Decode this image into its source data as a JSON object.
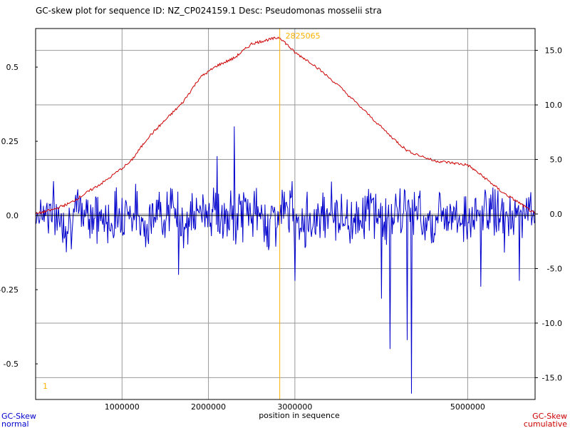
{
  "chart_data": {
    "type": "line",
    "title": "GC-skew plot for sequence ID: NZ_CP024159.1 Desc: Pseudomonas mosselii stra",
    "xlabel": "position in sequence",
    "xlim": [
      0,
      5780000
    ],
    "x_ticks": [
      1000000,
      2000000,
      3000000,
      5000000
    ],
    "x_tick_labels": [
      "1000000",
      "2000000",
      "3000000",
      "5000000"
    ],
    "y_left": {
      "name_line1": "GC-Skew",
      "name_line2": "normal",
      "ylim": [
        -0.62,
        0.63
      ],
      "ticks": [
        0.5,
        0.25,
        0.0,
        -0.25,
        -0.5
      ],
      "tick_labels": [
        "0.5",
        "0.25",
        "0.0",
        "-0.25",
        "-0.5"
      ]
    },
    "y_right": {
      "name_line1": "GC-Skew",
      "name_line2": "cumulative",
      "ylim": [
        -17.0,
        17.0
      ],
      "ticks": [
        15.0,
        10.0,
        5.0,
        0.0,
        -5.0,
        -10.0,
        -15.0
      ],
      "tick_labels": [
        "15.0",
        "10.0",
        "5.0",
        "0.0",
        "-5.0",
        "-10.0",
        "-15.0"
      ]
    },
    "grid": true,
    "markers": {
      "max_position": 2825065,
      "max_label": "2825065",
      "origin_label": "1"
    },
    "series": [
      {
        "axis": "right",
        "color": "#cc0000",
        "x": [
          0,
          200000,
          400000,
          600000,
          800000,
          1100000,
          1300000,
          1500000,
          1700000,
          1900000,
          2100000,
          2300000,
          2500000,
          2650000,
          2825065,
          3000000,
          3200000,
          3500000,
          3800000,
          4100000,
          4300000,
          4600000,
          4800000,
          5000000,
          5200000,
          5400000,
          5600000,
          5780000
        ],
        "values": [
          0.0,
          0.4,
          1.0,
          2.0,
          3.0,
          4.8,
          7.0,
          8.6,
          10.2,
          12.5,
          13.6,
          14.3,
          15.6,
          15.9,
          16.2,
          14.8,
          13.8,
          11.8,
          9.5,
          7.2,
          5.8,
          4.9,
          4.7,
          4.5,
          3.3,
          2.0,
          1.0,
          0.0
        ]
      },
      {
        "axis": "left",
        "color": "#0000cc",
        "style": "noise",
        "points": 700,
        "amplitude": 0.1,
        "spikes": [
          {
            "x": 2300000,
            "value": 0.3
          },
          {
            "x": 2100000,
            "value": 0.2
          },
          {
            "x": 1650000,
            "value": -0.2
          },
          {
            "x": 3000000,
            "value": -0.22
          },
          {
            "x": 4000000,
            "value": -0.28
          },
          {
            "x": 4100000,
            "value": -0.45
          },
          {
            "x": 4350000,
            "value": -0.6
          },
          {
            "x": 4300000,
            "value": -0.42
          },
          {
            "x": 5150000,
            "value": -0.24
          },
          {
            "x": 5600000,
            "value": -0.22
          }
        ]
      }
    ]
  }
}
